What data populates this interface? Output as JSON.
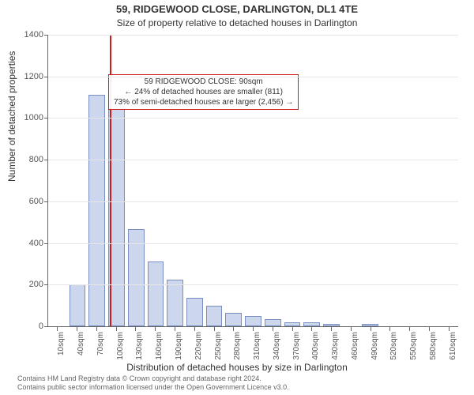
{
  "header": {
    "title": "59, RIDGEWOOD CLOSE, DARLINGTON, DL1 4TE",
    "subtitle": "Size of property relative to detached houses in Darlington"
  },
  "axes": {
    "ylabel": "Number of detached properties",
    "xlabel": "Distribution of detached houses by size in Darlington",
    "ymax": 1400,
    "ytick_step": 200,
    "yticks": [
      0,
      200,
      400,
      600,
      800,
      1000,
      1200,
      1400
    ]
  },
  "chart": {
    "type": "histogram",
    "bar_fill": "#ccd6ec",
    "bar_stroke": "#7a8fbf",
    "grid_color": "#e6e6e6",
    "background_color": "#ffffff",
    "categories": [
      "10sqm",
      "40sqm",
      "70sqm",
      "100sqm",
      "130sqm",
      "160sqm",
      "190sqm",
      "220sqm",
      "250sqm",
      "280sqm",
      "310sqm",
      "340sqm",
      "370sqm",
      "400sqm",
      "430sqm",
      "460sqm",
      "490sqm",
      "520sqm",
      "550sqm",
      "580sqm",
      "610sqm"
    ],
    "values": [
      0,
      200,
      1110,
      1090,
      465,
      310,
      225,
      135,
      100,
      65,
      48,
      35,
      20,
      18,
      10,
      0,
      10,
      0,
      0,
      0,
      0
    ]
  },
  "marker": {
    "color": "#d11b1b",
    "position_sqm": 90,
    "label_line1": "59 RIDGEWOOD CLOSE: 90sqm",
    "label_line2": "← 24% of detached houses are smaller (811)",
    "label_line3": "73% of semi-detached houses are larger (2,456) →"
  },
  "footnote": {
    "line1": "Contains HM Land Registry data © Crown copyright and database right 2024.",
    "line2": "Contains public sector information licensed under the Open Government Licence v3.0."
  }
}
